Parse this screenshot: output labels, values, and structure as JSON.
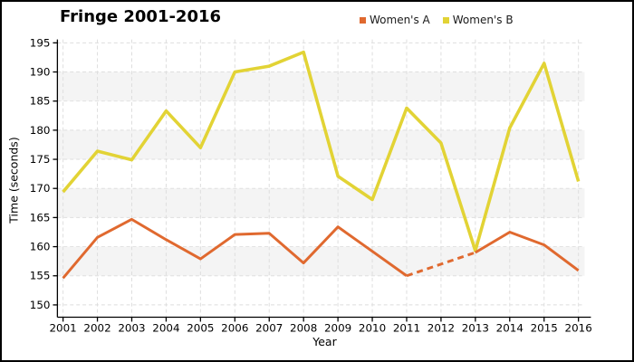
{
  "title": "Fringe 2001-2016",
  "legend": {
    "position": "top-right",
    "items": [
      {
        "label": "Women's A",
        "color": "#E0692F"
      },
      {
        "label": "Women's B",
        "color": "#E2D335"
      }
    ]
  },
  "chart_data": {
    "type": "line",
    "title": "Fringe 2001-2016",
    "xlabel": "Year",
    "ylabel": "Time (seconds)",
    "x": [
      2001,
      2002,
      2003,
      2004,
      2005,
      2006,
      2007,
      2008,
      2009,
      2010,
      2011,
      2012,
      2013,
      2014,
      2015,
      2016
    ],
    "yticks": [
      150,
      155,
      160,
      165,
      170,
      175,
      180,
      185,
      190,
      195
    ],
    "ylim": [
      147.8,
      195.7
    ],
    "grid": "dashed-both-axes",
    "band_fill": "#F4F4F4",
    "grid_color": "#DEDEDE",
    "axis_color": "#000000",
    "plot_bands": [
      [
        155,
        160
      ],
      [
        165,
        170
      ],
      [
        175,
        180
      ],
      [
        185,
        190
      ]
    ],
    "legend_position": "top-right",
    "series": [
      {
        "name": "Women's A",
        "color": "#E0692F",
        "stroke_width": 3,
        "values": [
          154.6,
          161.6,
          164.7,
          161.2,
          157.9,
          162.1,
          162.3,
          157.2,
          163.4,
          159.2,
          155.0,
          157.0,
          159.0,
          162.5,
          160.3,
          155.9
        ],
        "dash_range": [
          2011,
          2013
        ],
        "note": "segment between 2011 and 2013 is drawn dashed (interpolated 2012 value)"
      },
      {
        "name": "Women's B",
        "color": "#E2D335",
        "stroke_width": 3.6,
        "values": [
          169.4,
          176.4,
          174.9,
          183.3,
          177.0,
          190.0,
          191.0,
          193.4,
          172.1,
          168.1,
          183.8,
          177.8,
          159.3,
          180.4,
          191.5,
          171.2
        ]
      }
    ]
  }
}
